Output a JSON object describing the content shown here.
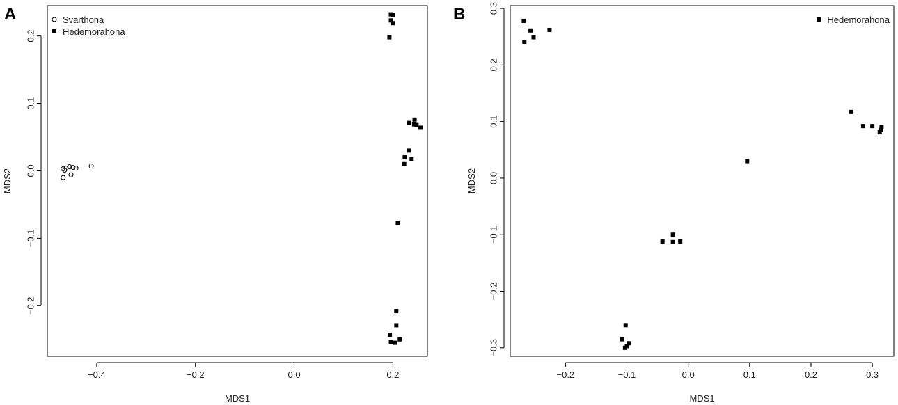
{
  "chart_data": [
    {
      "type": "scatter",
      "panel": "A",
      "xlabel": "MDS1",
      "ylabel": "MDS2",
      "xlim": [
        -0.5,
        0.27
      ],
      "ylim": [
        -0.275,
        0.245
      ],
      "xticks": [
        -0.4,
        -0.2,
        0.0,
        0.2
      ],
      "xtick_labels": [
        "−0.4",
        "−0.2",
        "0.0",
        "0.2"
      ],
      "yticks": [
        -0.2,
        -0.1,
        0.0,
        0.1,
        0.2
      ],
      "ytick_labels": [
        "−0.2",
        "−0.1",
        "0.0",
        "0.1",
        "0.2"
      ],
      "grid": false,
      "legend": "top-left",
      "series": [
        {
          "name": "Svarthona",
          "marker": "open-circle",
          "points": [
            [
              -0.468,
              0.003
            ],
            [
              -0.465,
              0.001
            ],
            [
              -0.462,
              0.004
            ],
            [
              -0.455,
              0.006
            ],
            [
              -0.448,
              0.005
            ],
            [
              -0.442,
              0.004
            ],
            [
              -0.411,
              0.007
            ],
            [
              -0.468,
              -0.01
            ],
            [
              -0.452,
              -0.006
            ]
          ]
        },
        {
          "name": "Hedemorahona",
          "marker": "filled-square",
          "points": [
            [
              0.196,
              0.232
            ],
            [
              0.2,
              0.231
            ],
            [
              0.196,
              0.223
            ],
            [
              0.2,
              0.219
            ],
            [
              0.193,
              0.198
            ],
            [
              0.244,
              0.076
            ],
            [
              0.233,
              0.071
            ],
            [
              0.243,
              0.069
            ],
            [
              0.248,
              0.068
            ],
            [
              0.256,
              0.064
            ],
            [
              0.232,
              0.03
            ],
            [
              0.224,
              0.02
            ],
            [
              0.238,
              0.017
            ],
            [
              0.223,
              0.01
            ],
            [
              0.21,
              -0.077
            ],
            [
              0.207,
              -0.208
            ],
            [
              0.207,
              -0.229
            ],
            [
              0.194,
              -0.243
            ],
            [
              0.214,
              -0.25
            ],
            [
              0.196,
              -0.254
            ],
            [
              0.205,
              -0.255
            ]
          ]
        }
      ]
    },
    {
      "type": "scatter",
      "panel": "B",
      "xlabel": "MDS1",
      "ylabel": "MDS2",
      "xlim": [
        -0.29,
        0.335
      ],
      "ylim": [
        -0.315,
        0.305
      ],
      "xticks": [
        -0.2,
        -0.1,
        0.0,
        0.1,
        0.2,
        0.3
      ],
      "xtick_labels": [
        "−0.2",
        "−0.1",
        "0.0",
        "0.1",
        "0.2",
        "0.3"
      ],
      "yticks": [
        -0.3,
        -0.2,
        -0.1,
        0.0,
        0.1,
        0.2,
        0.3
      ],
      "ytick_labels": [
        "−0.3",
        "−0.2",
        "−0.1",
        "0.0",
        "0.1",
        "0.2",
        "0.3"
      ],
      "grid": false,
      "legend": "top-right",
      "series": [
        {
          "name": "Hedemorahona",
          "marker": "filled-square",
          "points": [
            [
              -0.268,
              0.278
            ],
            [
              -0.257,
              0.261
            ],
            [
              -0.226,
              0.262
            ],
            [
              -0.252,
              0.249
            ],
            [
              -0.267,
              0.241
            ],
            [
              0.265,
              0.117
            ],
            [
              0.285,
              0.092
            ],
            [
              0.3,
              0.092
            ],
            [
              0.315,
              0.09
            ],
            [
              0.314,
              0.085
            ],
            [
              0.312,
              0.081
            ],
            [
              0.096,
              0.03
            ],
            [
              -0.025,
              -0.1
            ],
            [
              -0.042,
              -0.112
            ],
            [
              -0.013,
              -0.112
            ],
            [
              -0.025,
              -0.113
            ],
            [
              -0.102,
              -0.26
            ],
            [
              -0.108,
              -0.285
            ],
            [
              -0.097,
              -0.292
            ],
            [
              -0.1,
              -0.297
            ],
            [
              -0.103,
              -0.3
            ]
          ]
        }
      ]
    }
  ]
}
